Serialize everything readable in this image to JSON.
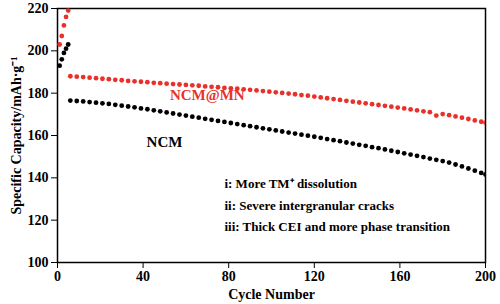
{
  "chart_data": {
    "type": "scatter",
    "x_label": "Cycle Number",
    "y_label": "Specific Capacity/mAh·g⁻¹",
    "marker": "circle",
    "x": [
      1,
      2,
      3,
      4,
      5,
      6,
      9,
      12,
      15,
      18,
      21,
      24,
      27,
      30,
      33,
      36,
      39,
      42,
      45,
      48,
      51,
      54,
      57,
      60,
      63,
      66,
      69,
      72,
      75,
      78,
      81,
      84,
      87,
      90,
      93,
      96,
      99,
      102,
      105,
      108,
      111,
      114,
      117,
      120,
      123,
      126,
      129,
      132,
      135,
      138,
      141,
      144,
      147,
      150,
      153,
      156,
      159,
      162,
      165,
      168,
      171,
      174,
      177,
      180,
      183,
      186,
      189,
      192,
      195,
      198,
      200
    ],
    "series": [
      {
        "name": "NCM@MN",
        "color": "#e8312a",
        "values": [
          203,
          207,
          212,
          216,
          219,
          188.0,
          187.8,
          187.6,
          187.3,
          187.1,
          186.8,
          186.6,
          186.3,
          186.1,
          185.8,
          185.6,
          185.4,
          185.2,
          184.9,
          184.7,
          184.5,
          184.3,
          184.1,
          183.9,
          183.7,
          183.5,
          183.2,
          183.0,
          182.8,
          182.5,
          182.3,
          182.1,
          181.8,
          181.6,
          181.3,
          181.0,
          180.7,
          180.4,
          180.1,
          179.8,
          179.5,
          179.1,
          178.8,
          178.4,
          178.0,
          177.6,
          177.2,
          176.8,
          176.4,
          176.0,
          175.6,
          175.2,
          174.8,
          174.4,
          174.0,
          173.6,
          173.2,
          172.8,
          172.3,
          171.9,
          171.4,
          171.0,
          169.4,
          170.1,
          169.6,
          169.0,
          168.4,
          167.8,
          167.1,
          166.5,
          166.1
        ]
      },
      {
        "name": "NCM",
        "color": "#000000",
        "values": [
          193,
          196,
          199,
          201,
          203,
          176.5,
          176.3,
          176.1,
          175.8,
          175.5,
          175.2,
          174.9,
          174.5,
          174.1,
          173.7,
          173.3,
          172.8,
          172.4,
          171.9,
          171.4,
          170.9,
          170.4,
          169.9,
          169.4,
          168.9,
          168.4,
          167.9,
          167.4,
          166.9,
          166.4,
          165.9,
          165.4,
          164.9,
          164.4,
          163.9,
          163.4,
          162.9,
          162.4,
          161.9,
          161.4,
          160.9,
          160.4,
          159.9,
          159.4,
          158.9,
          158.3,
          157.8,
          157.3,
          156.7,
          156.2,
          155.6,
          155.1,
          154.5,
          154.0,
          153.4,
          152.8,
          152.2,
          151.6,
          151.0,
          150.4,
          149.8,
          149.1,
          148.5,
          147.9,
          147.2,
          146.3,
          145.4,
          144.4,
          143.4,
          142.3,
          141.6
        ]
      }
    ],
    "xlim": [
      0,
      200
    ],
    "xticks": [
      0,
      40,
      80,
      120,
      160,
      200
    ],
    "ylim": [
      100,
      220
    ],
    "yticks": [
      100,
      120,
      140,
      160,
      180,
      200,
      220
    ],
    "annotations": [
      "i: More TM⁺ dissolution",
      "ii: Severe intergranular cracks",
      "iii: Thick CEI and more phase transition"
    ]
  }
}
